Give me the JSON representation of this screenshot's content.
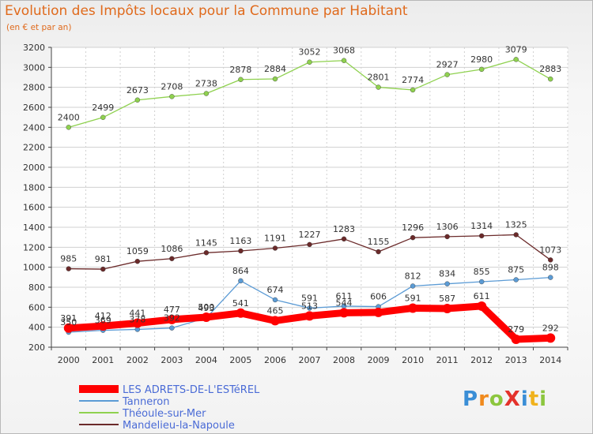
{
  "header": {
    "title": "Evolution des Impôts locaux pour la Commune par Habitant",
    "subtitle": "(en € et par an)"
  },
  "logo": {
    "text": "ProXiti"
  },
  "colors": {
    "les_adrets": "#ff0000",
    "tanneron": "#5b9bd5",
    "theoule": "#8fd14f",
    "mandelieu": "#6b2a2a",
    "title": "#e06a1c",
    "legend_text": "#4a6bd6"
  },
  "chart_data": {
    "type": "line",
    "title": "Evolution des Impôts locaux pour la Commune par Habitant",
    "subtitle": "(en € et par an)",
    "xlabel": "",
    "ylabel": "",
    "x": [
      "2000",
      "2001",
      "2002",
      "2003",
      "2004",
      "2005",
      "2006",
      "2007",
      "2008",
      "2009",
      "2010",
      "2011",
      "2012",
      "2013",
      "2014"
    ],
    "ylim": [
      200,
      3200
    ],
    "yticks": [
      200,
      400,
      600,
      800,
      1000,
      1200,
      1400,
      1600,
      1800,
      2000,
      2200,
      2400,
      2600,
      2800,
      3000,
      3200
    ],
    "grid": true,
    "legend_position": "bottom-left",
    "series": [
      {
        "name": "LES ADRETS-DE-L'ESTéREL",
        "color": "#ff0000",
        "values": [
          391,
          412,
          441,
          477,
          500,
          541,
          465,
          513,
          544,
          548,
          591,
          587,
          611,
          279,
          292
        ]
      },
      {
        "name": "Tanneron",
        "color": "#5b9bd5",
        "values": [
          350,
          369,
          378,
          392,
          493,
          864,
          674,
          591,
          611,
          606,
          812,
          834,
          855,
          875,
          898
        ]
      },
      {
        "name": "Théoule-sur-Mer",
        "color": "#8fd14f",
        "values": [
          2400,
          2499,
          2673,
          2708,
          2738,
          2878,
          2884,
          3052,
          3068,
          2801,
          2774,
          2927,
          2980,
          3079,
          2883
        ]
      },
      {
        "name": "Mandelieu-la-Napoule",
        "color": "#6b2a2a",
        "values": [
          985,
          981,
          1059,
          1086,
          1145,
          1163,
          1191,
          1227,
          1283,
          1155,
          1296,
          1306,
          1314,
          1325,
          1073
        ]
      }
    ],
    "data_labels": {
      "LES ADRETS-DE-L'ESTéREL": [
        "391",
        "412",
        "441",
        "477",
        "500",
        "541",
        "465",
        "513",
        "544",
        "",
        "591",
        "587",
        "611",
        "279",
        "292"
      ],
      "Tanneron": [
        "350",
        "369",
        "378",
        "392",
        "493",
        "864",
        "674",
        "591",
        "611",
        "606",
        "812",
        "834",
        "855",
        "875",
        "898"
      ],
      "Théoule-sur-Mer": [
        "2400",
        "2499",
        "2673",
        "2708",
        "2738",
        "2878",
        "2884",
        "3052",
        "3068",
        "2801",
        "2774",
        "2927",
        "2980",
        "3079",
        "2883"
      ],
      "Mandelieu-la-Napoule": [
        "985",
        "981",
        "1059",
        "1086",
        "1145",
        "1163",
        "1191",
        "1227",
        "1283",
        "1155",
        "1296",
        "1306",
        "1314",
        "1325",
        "1073"
      ]
    }
  }
}
